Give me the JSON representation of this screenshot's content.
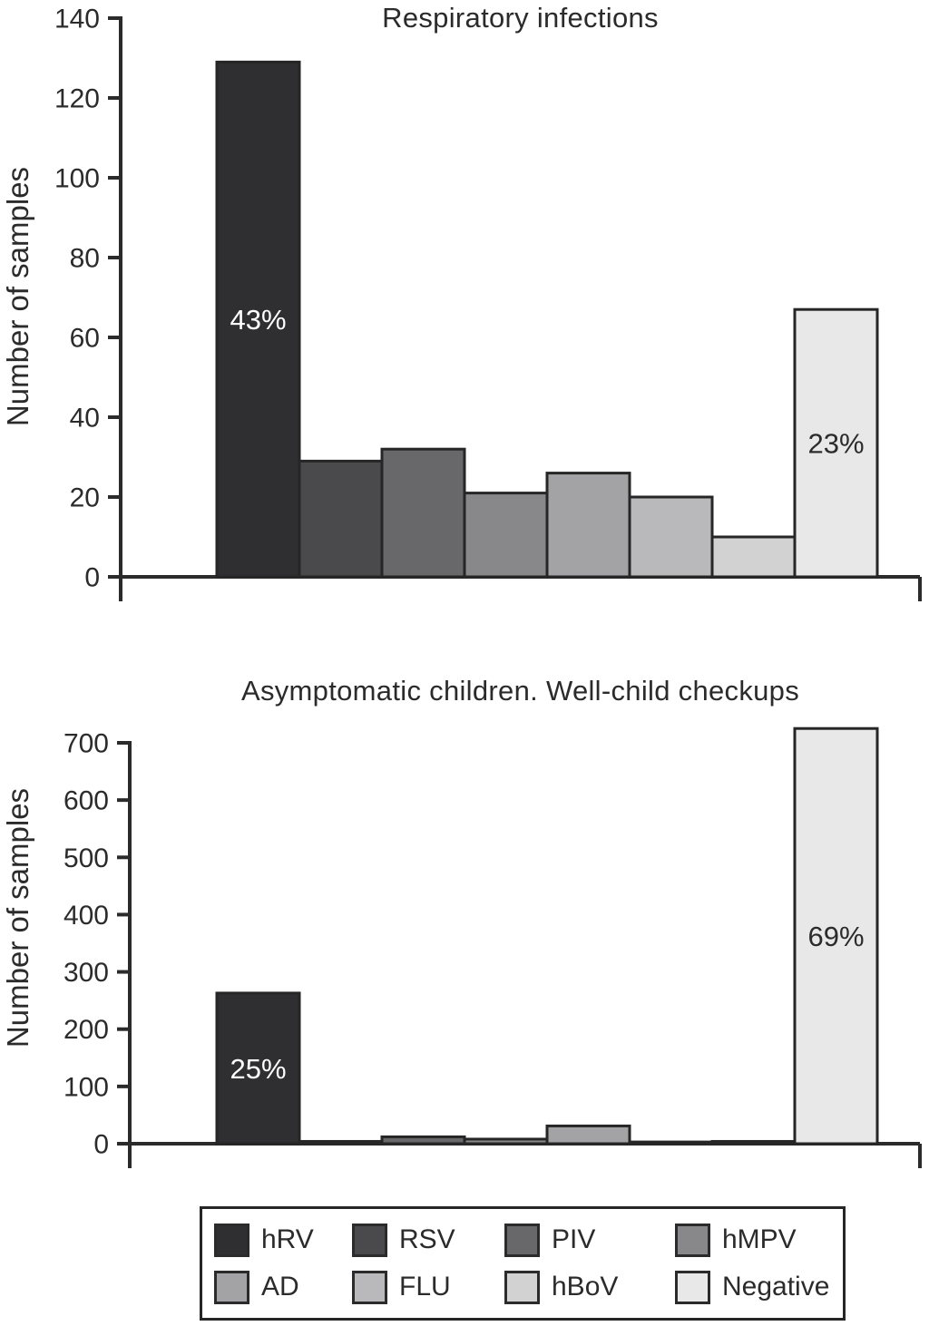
{
  "page": {
    "background": "#ffffff"
  },
  "palette": {
    "hRV": "#2f2f31",
    "RSV": "#4a4a4c",
    "PIV": "#68686a",
    "hMPV": "#88888a",
    "AD": "#a3a3a5",
    "FLU": "#b9b9bb",
    "hBoV": "#d2d2d3",
    "Negative": "#e8e8e8"
  },
  "styles": {
    "axis_color": "#2b2b2b",
    "bar_border": "#262626",
    "label_color": "#2b2b2b",
    "light_label_color": "#ffffff"
  },
  "chart_data": [
    {
      "id": "respiratory",
      "type": "bar",
      "title": "Respiratory infections",
      "ylabel": "Number of samples",
      "xlabel": "",
      "categories": [
        "hRV",
        "RSV",
        "PIV",
        "hMPV",
        "AD",
        "FLU",
        "hBoV",
        "Negative"
      ],
      "values": [
        129,
        29,
        32,
        21,
        26,
        20,
        10,
        67
      ],
      "ylim": [
        0,
        140
      ],
      "yticks": [
        0,
        20,
        40,
        60,
        80,
        100,
        120,
        140
      ],
      "bar_labels": [
        {
          "category": "hRV",
          "text": "43%",
          "style": "light"
        },
        {
          "category": "Negative",
          "text": "23%",
          "style": "dark"
        }
      ],
      "grid": false,
      "legend_position": "shared-bottom"
    },
    {
      "id": "asymptomatic",
      "type": "bar",
      "title": "Asymptomatic children. Well-child checkups",
      "ylabel": "Number of samples",
      "xlabel": "",
      "categories": [
        "hRV",
        "RSV",
        "PIV",
        "hMPV",
        "AD",
        "FLU",
        "hBoV",
        "Negative"
      ],
      "values": [
        263,
        4,
        12,
        8,
        31,
        3,
        4,
        725
      ],
      "ylim": [
        0,
        700
      ],
      "yticks": [
        0,
        100,
        200,
        300,
        400,
        500,
        600,
        700
      ],
      "bar_labels": [
        {
          "category": "hRV",
          "text": "25%",
          "style": "light"
        },
        {
          "category": "Negative",
          "text": "69%",
          "style": "dark"
        }
      ],
      "grid": false,
      "legend_position": "shared-bottom"
    }
  ],
  "legend": {
    "rows": [
      [
        "hRV",
        "RSV",
        "PIV",
        "hMPV"
      ],
      [
        "AD",
        "FLU",
        "hBoV",
        "Negative"
      ]
    ]
  }
}
